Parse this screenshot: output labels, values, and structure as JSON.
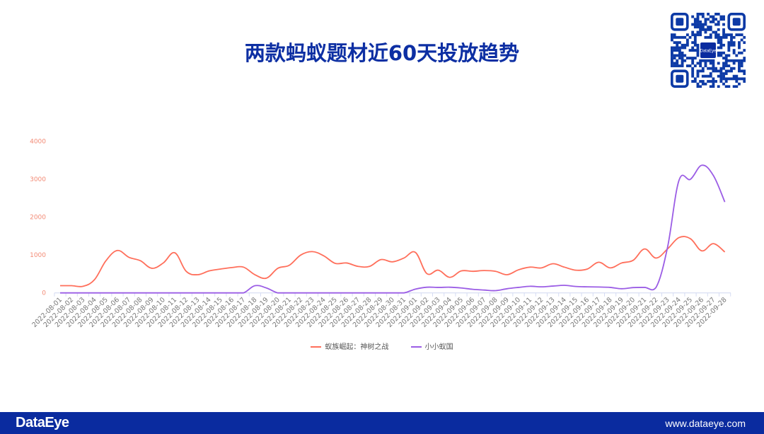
{
  "title": "两款蚂蚁题材近60天投放趋势",
  "footer": {
    "brand": "DataEye",
    "website": "www.dataeye.com"
  },
  "qr": {
    "center_label": "DataEye",
    "color": "#0d3aa6"
  },
  "chart_data": {
    "type": "line",
    "smooth": true,
    "title": "两款蚂蚁题材近60天投放趋势",
    "xlabel": "",
    "ylabel": "",
    "ylim": [
      0,
      4000
    ],
    "yticks": [
      0,
      1000,
      2000,
      3000,
      4000
    ],
    "grid": false,
    "legend_position": "bottom",
    "x": [
      "2022-08-01",
      "2022-08-02",
      "2022-08-03",
      "2022-08-04",
      "2022-08-05",
      "2022-08-06",
      "2022-08-07",
      "2022-08-08",
      "2022-08-09",
      "2022-08-10",
      "2022-08-11",
      "2022-08-12",
      "2022-08-13",
      "2022-08-14",
      "2022-08-15",
      "2022-08-16",
      "2022-08-17",
      "2022-08-18",
      "2022-08-19",
      "2022-08-20",
      "2022-08-21",
      "2022-08-22",
      "2022-08-23",
      "2022-08-24",
      "2022-08-25",
      "2022-08-26",
      "2022-08-27",
      "2022-08-28",
      "2022-08-29",
      "2022-08-30",
      "2022-08-31",
      "2022-09-01",
      "2022-09-02",
      "2022-09-03",
      "2022-09-04",
      "2022-09-05",
      "2022-09-06",
      "2022-09-07",
      "2022-09-08",
      "2022-09-09",
      "2022-09-10",
      "2022-09-11",
      "2022-09-12",
      "2022-09-13",
      "2022-09-14",
      "2022-09-15",
      "2022-09-16",
      "2022-09-17",
      "2022-09-18",
      "2022-09-19",
      "2022-09-20",
      "2022-09-21",
      "2022-09-22",
      "2022-09-23",
      "2022-09-24",
      "2022-09-25",
      "2022-09-26",
      "2022-09-27",
      "2022-09-28"
    ],
    "series": [
      {
        "name": "蚁族崛起：神树之战",
        "color": "#ff6f5b",
        "values": [
          190,
          190,
          175,
          350,
          850,
          1120,
          940,
          850,
          650,
          790,
          1060,
          570,
          480,
          580,
          630,
          670,
          680,
          480,
          390,
          650,
          730,
          1000,
          1090,
          980,
          780,
          790,
          700,
          700,
          880,
          820,
          920,
          1070,
          510,
          600,
          410,
          580,
          570,
          590,
          570,
          480,
          610,
          680,
          660,
          770,
          680,
          600,
          630,
          810,
          660,
          790,
          860,
          1160,
          920,
          1160,
          1460,
          1430,
          1110,
          1300,
          1080
        ]
      },
      {
        "name": "小小蚁国",
        "color": "#9b5de5",
        "values": [
          0,
          0,
          0,
          0,
          0,
          0,
          0,
          0,
          0,
          0,
          0,
          0,
          0,
          0,
          0,
          0,
          0,
          190,
          130,
          0,
          0,
          0,
          0,
          0,
          0,
          0,
          0,
          0,
          0,
          0,
          0,
          100,
          150,
          145,
          150,
          130,
          95,
          75,
          60,
          110,
          145,
          175,
          160,
          180,
          200,
          170,
          160,
          155,
          145,
          110,
          140,
          145,
          145,
          1200,
          2970,
          3000,
          3370,
          3100,
          2400
        ]
      }
    ]
  }
}
